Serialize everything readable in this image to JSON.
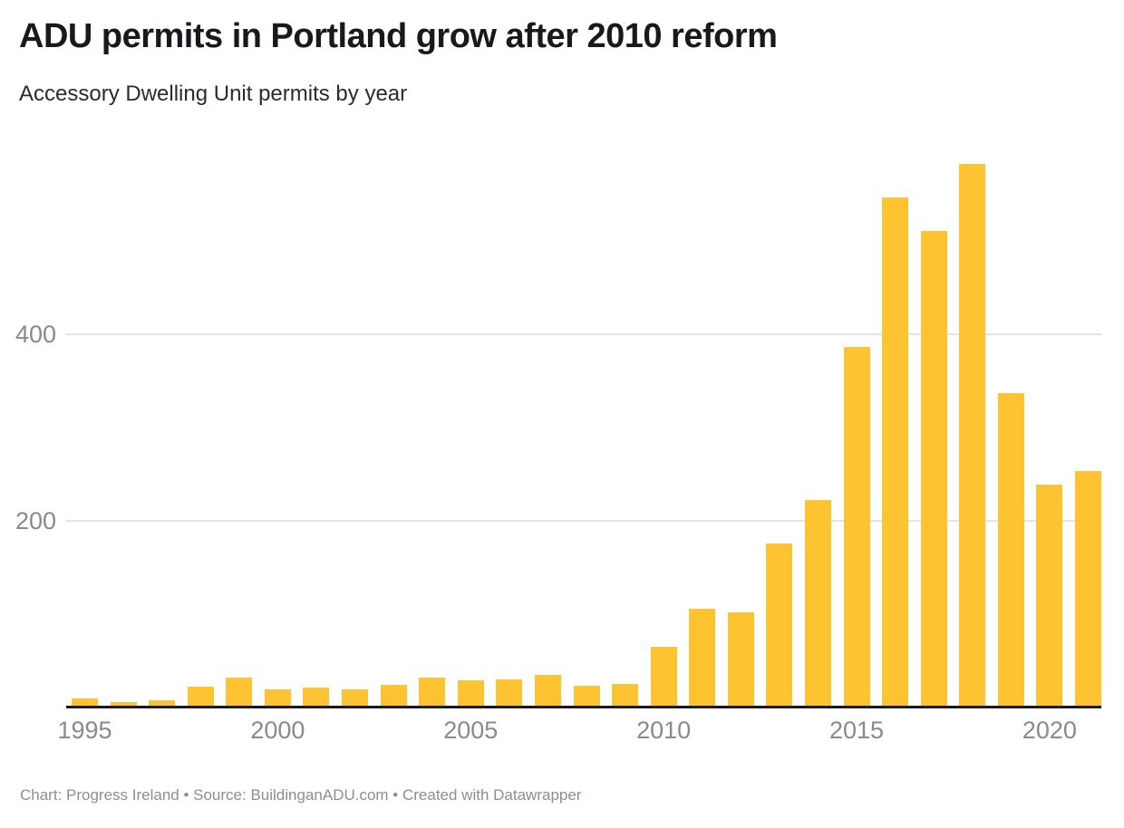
{
  "header": {
    "title": "ADU permits in Portland grow after 2010 reform",
    "subtitle": "Accessory Dwelling Unit permits by year"
  },
  "chart_data": {
    "type": "bar",
    "title": "ADU permits in Portland grow after 2010 reform",
    "subtitle": "Accessory Dwelling Unit permits by year",
    "categories": [
      "1995",
      "1996",
      "1997",
      "1998",
      "1999",
      "2000",
      "2001",
      "2002",
      "2003",
      "2004",
      "2005",
      "2006",
      "2007",
      "2008",
      "2009",
      "2010",
      "2011",
      "2012",
      "2013",
      "2014",
      "2015",
      "2016",
      "2017",
      "2018",
      "2019",
      "2020",
      "2021"
    ],
    "values": [
      10,
      6,
      8,
      22,
      32,
      19,
      21,
      19,
      24,
      32,
      29,
      30,
      35,
      23,
      25,
      65,
      106,
      102,
      176,
      222,
      386,
      547,
      511,
      583,
      337,
      239,
      253
    ],
    "xlabel": "",
    "ylabel": "",
    "ylim": [
      0,
      600
    ],
    "yticks": [
      200,
      400
    ],
    "xticks": [
      "1995",
      "2000",
      "2005",
      "2010",
      "2015",
      "2020"
    ],
    "grid": "horizontal-only",
    "legend": "none",
    "bar_color": "#fdc331"
  },
  "colors": {
    "bar": "#fdc331",
    "title": "#18191c",
    "subtitle": "#2b2b2b",
    "tick_label": "#8a8a8a",
    "gridline": "#e4e4e4",
    "axis_line": "#1a1a1a",
    "footer": "#8e8e8e",
    "background": "#ffffff"
  },
  "footer": {
    "text": "Chart: Progress Ireland • Source: BuildinganADU.com • Created with Datawrapper"
  }
}
